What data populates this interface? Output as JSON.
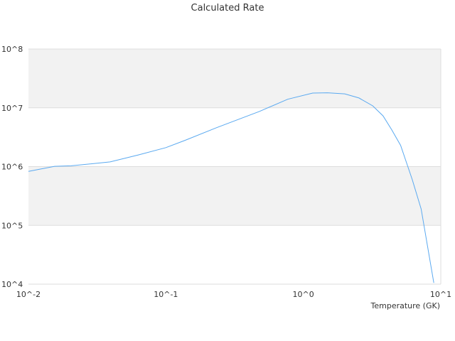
{
  "chart_data": {
    "type": "line",
    "title": "Calculated Rate",
    "xlabel": "Temperature (GK)",
    "ylabel": "",
    "x_scale": "log",
    "y_scale": "log",
    "xlim": [
      0.01,
      10
    ],
    "ylim": [
      10000,
      100000000
    ],
    "x_ticks": [
      "10^-2",
      "10^-1",
      "10^0",
      "10^1"
    ],
    "y_ticks": [
      "10^4",
      "10^5",
      "10^6",
      "10^7",
      "10^8"
    ],
    "grid": "alternating horizontal bands",
    "legend": "none",
    "colors": {
      "line": "#5aa9f0",
      "band": "#f2f2f2",
      "grid": "#dddddd"
    },
    "series": [
      {
        "x": [
          0.01,
          0.0155,
          0.0204,
          0.0393,
          0.063,
          0.1,
          0.138,
          0.234,
          0.48,
          0.77,
          1.17,
          1.5,
          2.0,
          2.54,
          3.2,
          3.8,
          4.4,
          5.1,
          6.2,
          7.2,
          8.9
        ],
        "y": [
          830000,
          1010000,
          1030000,
          1200000,
          1580000,
          2100000,
          2800000,
          4600000,
          8700000,
          14000000,
          17800000,
          18000000,
          17300000,
          14700000,
          10800000,
          7300000,
          4200000,
          2300000,
          600000,
          190000,
          10500
        ]
      }
    ]
  }
}
